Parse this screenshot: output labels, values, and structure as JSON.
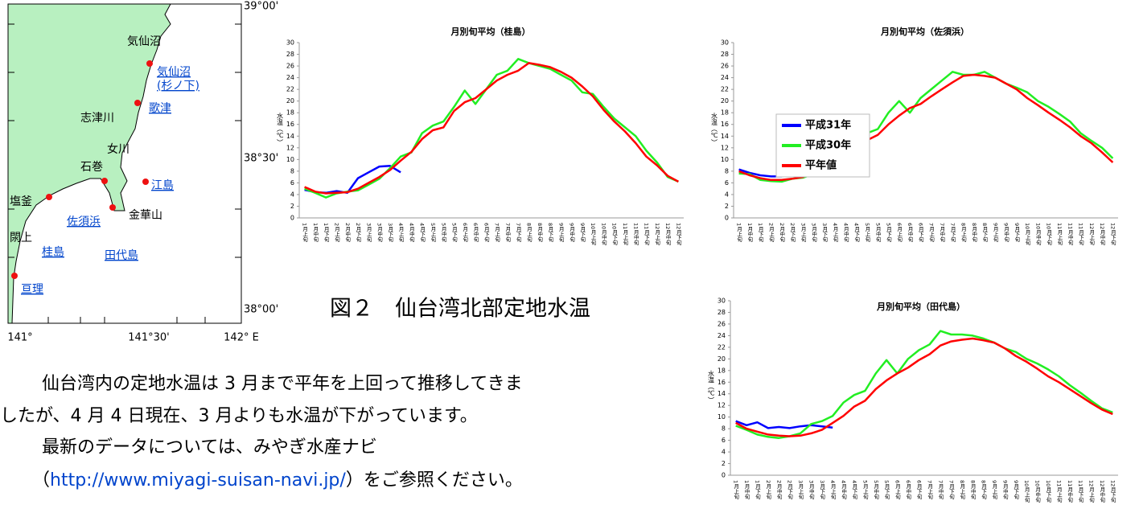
{
  "chart_data": [
    {
      "type": "line",
      "title": "月別旬平均（桂島）",
      "ylabel": "水温（℃）",
      "categories": [
        "1月上旬",
        "1月中旬",
        "1月下旬",
        "2月上旬",
        "2月中旬",
        "2月下旬",
        "3月上旬",
        "3月中旬",
        "3月下旬",
        "4月上旬",
        "4月中旬",
        "4月下旬",
        "5月上旬",
        "5月中旬",
        "5月下旬",
        "6月上旬",
        "6月中旬",
        "6月下旬",
        "7月上旬",
        "7月中旬",
        "7月下旬",
        "8月上旬",
        "8月中旬",
        "8月下旬",
        "9月上旬",
        "9月中旬",
        "9月下旬",
        "10月上旬",
        "10月中旬",
        "10月下旬",
        "11月上旬",
        "11月中旬",
        "11月下旬",
        "12月上旬",
        "12月中旬",
        "12月下旬"
      ],
      "ylim": [
        0,
        30
      ],
      "yticks": [
        0,
        2,
        4,
        6,
        8,
        10,
        12,
        14,
        16,
        18,
        20,
        22,
        24,
        26,
        28,
        30
      ],
      "grid": false,
      "series": [
        {
          "color": "#0000ff",
          "values": [
            4.8,
            4.4,
            4.3,
            4.6,
            4.3,
            6.8,
            7.8,
            8.8,
            8.9,
            7.8,
            null,
            null,
            null,
            null,
            null,
            null,
            null,
            null,
            null,
            null,
            null,
            null,
            null,
            null,
            null,
            null,
            null,
            null,
            null,
            null,
            null,
            null,
            null,
            null,
            null,
            null
          ]
        },
        {
          "color": "#22ee22",
          "values": [
            5.0,
            4.3,
            3.5,
            4.2,
            4.5,
            4.7,
            5.7,
            6.7,
            8.5,
            10.5,
            11.2,
            14.5,
            15.8,
            16.5,
            19.0,
            21.8,
            19.5,
            22.0,
            24.5,
            25.2,
            27.2,
            26.5,
            26.0,
            25.5,
            24.5,
            23.5,
            21.5,
            21.2,
            19.0,
            17.0,
            15.5,
            14.0,
            11.5,
            9.5,
            7.0,
            6.2
          ]
        },
        {
          "color": "#ff0000",
          "values": [
            5.3,
            4.5,
            4.2,
            4.3,
            4.4,
            5.0,
            6.0,
            7.0,
            8.2,
            9.8,
            11.3,
            13.5,
            15.0,
            15.5,
            18.3,
            19.8,
            20.5,
            22.0,
            23.5,
            24.5,
            25.2,
            26.5,
            26.2,
            25.8,
            25.0,
            24.0,
            22.5,
            20.8,
            18.5,
            16.5,
            14.8,
            12.8,
            10.5,
            9.0,
            7.2,
            6.2
          ]
        }
      ]
    },
    {
      "type": "line",
      "title": "月別旬平均（佐須浜）",
      "ylabel": "水温（℃）",
      "categories": [
        "1月上旬",
        "1月中旬",
        "1月下旬",
        "2月上旬",
        "2月中旬",
        "2月下旬",
        "3月上旬",
        "3月中旬",
        "3月下旬",
        "4月上旬",
        "4月中旬",
        "4月下旬",
        "5月上旬",
        "5月中旬",
        "5月下旬",
        "6月上旬",
        "6月中旬",
        "6月下旬",
        "7月上旬",
        "7月中旬",
        "7月下旬",
        "8月上旬",
        "8月中旬",
        "8月下旬",
        "9月上旬",
        "9月中旬",
        "9月下旬",
        "10月上旬",
        "10月中旬",
        "10月下旬",
        "11月上旬",
        "11月中旬",
        "11月下旬",
        "12月上旬",
        "12月中旬",
        "12月下旬"
      ],
      "ylim": [
        0,
        30
      ],
      "yticks": [
        0,
        2,
        4,
        6,
        8,
        10,
        12,
        14,
        16,
        18,
        20,
        22,
        24,
        26,
        28,
        30
      ],
      "grid": false,
      "legend": "left",
      "series": [
        {
          "name": "平成31年",
          "color": "#0000ff",
          "values": [
            8.3,
            7.7,
            7.3,
            7.1,
            7.1,
            8.0,
            8.8,
            9.1,
            8.9,
            8.4,
            null,
            null,
            null,
            null,
            null,
            null,
            null,
            null,
            null,
            null,
            null,
            null,
            null,
            null,
            null,
            null,
            null,
            null,
            null,
            null,
            null,
            null,
            null,
            null,
            null,
            null
          ]
        },
        {
          "name": "平成30年",
          "color": "#22ee22",
          "values": [
            7.6,
            7.5,
            6.5,
            6.3,
            6.2,
            6.7,
            6.9,
            7.5,
            9.0,
            9.8,
            10.8,
            12.5,
            14.5,
            15.2,
            18.0,
            20.0,
            18.0,
            20.5,
            22.0,
            23.5,
            25.0,
            24.5,
            24.5,
            25.0,
            24.0,
            23.0,
            22.3,
            21.5,
            20.0,
            19.0,
            17.8,
            16.5,
            14.5,
            13.2,
            12.0,
            10.2
          ]
        },
        {
          "name": "平年値",
          "color": "#ff0000",
          "values": [
            8.0,
            7.3,
            6.8,
            6.5,
            6.5,
            6.7,
            7.0,
            7.8,
            8.7,
            9.8,
            11.0,
            12.5,
            13.3,
            14.2,
            16.0,
            17.5,
            18.8,
            19.5,
            20.8,
            22.0,
            23.2,
            24.3,
            24.5,
            24.3,
            24.0,
            23.0,
            22.0,
            20.5,
            19.3,
            18.0,
            16.8,
            15.5,
            14.0,
            12.8,
            11.2,
            9.5
          ]
        }
      ]
    },
    {
      "type": "line",
      "title": "月別旬平均（田代島）",
      "ylabel": "水温（℃）",
      "categories": [
        "1月上旬",
        "1月中旬",
        "1月下旬",
        "2月上旬",
        "2月中旬",
        "2月下旬",
        "3月上旬",
        "3月中旬",
        "3月下旬",
        "4月上旬",
        "4月中旬",
        "4月下旬",
        "5月上旬",
        "5月中旬",
        "5月下旬",
        "6月上旬",
        "6月中旬",
        "6月下旬",
        "7月上旬",
        "7月中旬",
        "7月下旬",
        "8月上旬",
        "8月中旬",
        "8月下旬",
        "9月上旬",
        "9月中旬",
        "9月下旬",
        "10月上旬",
        "10月中旬",
        "10月下旬",
        "11月上旬",
        "11月中旬",
        "11月下旬",
        "12月上旬",
        "12月中旬",
        "12月下旬"
      ],
      "ylim": [
        0,
        30
      ],
      "yticks": [
        0,
        2,
        4,
        6,
        8,
        10,
        12,
        14,
        16,
        18,
        20,
        22,
        24,
        26,
        28,
        30
      ],
      "grid": false,
      "series": [
        {
          "color": "#0000ff",
          "values": [
            9.3,
            8.6,
            9.1,
            8.1,
            8.3,
            8.1,
            8.4,
            8.6,
            8.4,
            8.2,
            null,
            null,
            null,
            null,
            null,
            null,
            null,
            null,
            null,
            null,
            null,
            null,
            null,
            null,
            null,
            null,
            null,
            null,
            null,
            null,
            null,
            null,
            null,
            null,
            null,
            null
          ]
        },
        {
          "color": "#22ee22",
          "values": [
            8.5,
            7.8,
            7.0,
            6.6,
            6.4,
            6.7,
            7.2,
            8.8,
            9.3,
            10.2,
            12.5,
            13.8,
            14.5,
            17.5,
            19.8,
            17.5,
            20.0,
            21.5,
            22.5,
            24.8,
            24.2,
            24.2,
            24.0,
            23.5,
            22.8,
            21.8,
            21.2,
            20.0,
            19.2,
            18.2,
            17.0,
            15.5,
            14.2,
            12.8,
            11.5,
            10.8
          ]
        },
        {
          "color": "#ff0000",
          "values": [
            9.0,
            8.0,
            7.5,
            7.0,
            6.8,
            6.7,
            6.8,
            7.2,
            7.8,
            9.0,
            10.2,
            11.8,
            12.8,
            14.8,
            16.3,
            17.5,
            18.5,
            19.8,
            20.8,
            22.3,
            23.0,
            23.3,
            23.5,
            23.2,
            22.8,
            21.8,
            20.5,
            19.5,
            18.3,
            17.0,
            16.0,
            14.8,
            13.6,
            12.4,
            11.3,
            10.5
          ]
        }
      ]
    }
  ],
  "map": {
    "labels": [
      {
        "text": "気仙沼",
        "link": false
      },
      {
        "text": "気仙沼",
        "link": true
      },
      {
        "text": "(杉ノ下)",
        "link": true
      },
      {
        "text": "志津川",
        "link": false
      },
      {
        "text": "歌津",
        "link": true
      },
      {
        "text": "石巻",
        "link": false
      },
      {
        "text": "女川",
        "link": false
      },
      {
        "text": "江島",
        "link": true
      },
      {
        "text": "塩釜",
        "link": false
      },
      {
        "text": "佐須浜",
        "link": true
      },
      {
        "text": "金華山",
        "link": false
      },
      {
        "text": "閖上",
        "link": false
      },
      {
        "text": "桂島",
        "link": true
      },
      {
        "text": "田代島",
        "link": true
      },
      {
        "text": "亘理",
        "link": true
      }
    ],
    "lat_labels": [
      "39°00'",
      "38°30'",
      "38°00'"
    ],
    "lon_labels": [
      "141°",
      "141°30'",
      "142° E"
    ]
  },
  "caption": "図２　仙台湾北部定地水温",
  "paragraph": {
    "lines": [
      "仙台湾内の定地水温は 3 月まで平年を上回って推移してきま",
      "したが、4 月 4 日現在、3 月よりも水温が下がっています。",
      "最新のデータについては、みやぎ水産ナビ"
    ],
    "last_prefix": "（",
    "url": "http://www.miyagi-suisan-navi.jp/",
    "last_suffix": "）をご参照ください。"
  }
}
